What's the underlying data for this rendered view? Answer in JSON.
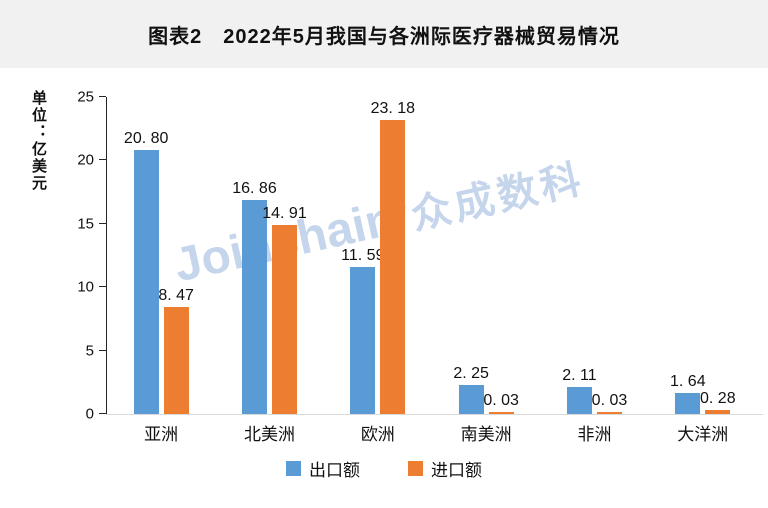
{
  "header": {
    "title": "图表2　2022年5月我国与各洲际医疗器械贸易情况"
  },
  "watermark": {
    "brand": "Joinchain",
    "reg": "®",
    "suffix": "众成数科",
    "color": "#c5d5ec"
  },
  "colors": {
    "export_blue": "#5B9BD5",
    "import_orange": "#ED7D31",
    "header_band_bg": "#f1f1f1",
    "axis_line": "#262626",
    "baseline": "#d9d9d9",
    "text": "#111111"
  },
  "chart_data": {
    "type": "bar",
    "title": "图表2　2022年5月我国与各洲际医疗器械贸易情况",
    "ylabel": "单位：亿美元",
    "xlabel": "",
    "categories": [
      "亚洲",
      "北美洲",
      "欧洲",
      "南美洲",
      "非洲",
      "大洋洲"
    ],
    "series": [
      {
        "name": "出口额",
        "color": "#5B9BD5",
        "values": [
          20.8,
          16.86,
          11.59,
          2.25,
          2.11,
          1.64
        ],
        "labels": [
          "20. 80",
          "16. 86",
          "11. 59",
          "2. 25",
          "2. 11",
          "1. 64"
        ]
      },
      {
        "name": "进口额",
        "color": "#ED7D31",
        "values": [
          8.47,
          14.91,
          23.18,
          0.03,
          0.03,
          0.28
        ],
        "labels": [
          "8. 47",
          "14. 91",
          "23. 18",
          "0. 03",
          "0. 03",
          "0. 28"
        ]
      }
    ],
    "ylim": [
      0,
      25
    ],
    "yticks": [
      0,
      5,
      10,
      15,
      20,
      25
    ],
    "grid": false,
    "legend_position": "bottom"
  },
  "legend": {
    "items": [
      {
        "label": "出口额",
        "color": "#5B9BD5"
      },
      {
        "label": "进口额",
        "color": "#ED7D31"
      }
    ]
  }
}
